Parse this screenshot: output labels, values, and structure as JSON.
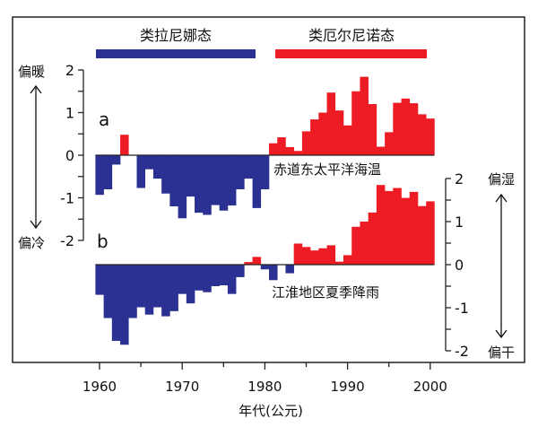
{
  "colors": {
    "la_nina": "#2b3192",
    "el_nino": "#ed1c24",
    "axis": "#222222"
  },
  "legend": {
    "la_nina_label": "类拉尼娜态",
    "el_nino_label": "类厄尔尼诺态"
  },
  "xaxis": {
    "title": "年代(公元)",
    "ticks": [
      1960,
      1970,
      1980,
      1990,
      2000
    ],
    "minor_ticks": [
      1965,
      1975,
      1985,
      1995
    ],
    "range": [
      1959.5,
      2000.5
    ]
  },
  "chart_data": [
    {
      "type": "bar",
      "panel": "a",
      "label": "赤道东太平洋海温",
      "axis_side": "left",
      "ylim": [
        -2,
        2
      ],
      "yticks": [
        -2,
        -1,
        0,
        1,
        2
      ],
      "ytick_labels": [
        "-2",
        "-1",
        "0",
        "1",
        "2"
      ],
      "top_label": "偏暖",
      "bottom_label": "偏冷",
      "x": [
        1960,
        1961,
        1962,
        1963,
        1964,
        1965,
        1966,
        1967,
        1968,
        1969,
        1970,
        1971,
        1972,
        1973,
        1974,
        1975,
        1976,
        1977,
        1978,
        1979,
        1980,
        1981,
        1982,
        1983,
        1984,
        1985,
        1986,
        1987,
        1988,
        1989,
        1990,
        1991,
        1992,
        1993,
        1994,
        1995,
        1996,
        1997,
        1998,
        1999,
        2000
      ],
      "values": [
        -0.93,
        -0.8,
        -0.22,
        0.48,
        0,
        -0.77,
        -0.33,
        -0.55,
        -0.9,
        -1.2,
        -1.48,
        -0.97,
        -1.35,
        -1.4,
        -1.17,
        -1.3,
        -1.18,
        -0.8,
        -0.55,
        -1.24,
        -0.8,
        0.28,
        0.42,
        0.19,
        0.1,
        0.56,
        0.84,
        1.0,
        1.47,
        1.05,
        0.7,
        1.5,
        1.84,
        1.2,
        0.2,
        0.54,
        1.23,
        1.33,
        1.22,
        0.96,
        0.86
      ]
    },
    {
      "type": "bar",
      "panel": "b",
      "label": "江淮地区夏季降雨",
      "axis_side": "right",
      "ylim": [
        -2,
        2
      ],
      "yticks": [
        -2,
        -1,
        0,
        1,
        2
      ],
      "ytick_labels": [
        "-2",
        "-1",
        "0",
        "1",
        "2"
      ],
      "top_label": "偏湿",
      "bottom_label": "偏干",
      "x": [
        1960,
        1961,
        1962,
        1963,
        1964,
        1965,
        1966,
        1967,
        1968,
        1969,
        1970,
        1971,
        1972,
        1973,
        1974,
        1975,
        1976,
        1977,
        1978,
        1979,
        1980,
        1981,
        1982,
        1983,
        1984,
        1985,
        1986,
        1987,
        1988,
        1989,
        1990,
        1991,
        1992,
        1993,
        1994,
        1995,
        1996,
        1997,
        1998,
        1999,
        2000
      ],
      "values": [
        -0.7,
        -1.24,
        -1.77,
        -1.86,
        -1.24,
        -0.99,
        -1.16,
        -0.99,
        -1.2,
        -1.08,
        -0.68,
        -0.9,
        -0.6,
        -0.64,
        -0.5,
        -0.48,
        -0.68,
        -0.29,
        0.06,
        0.18,
        -0.11,
        -0.36,
        0,
        -0.2,
        0.49,
        0.41,
        0.33,
        0.38,
        0.45,
        0.07,
        0.22,
        0.88,
        1.0,
        1.21,
        1.85,
        1.71,
        1.78,
        1.55,
        1.69,
        1.36,
        1.47
      ]
    }
  ]
}
